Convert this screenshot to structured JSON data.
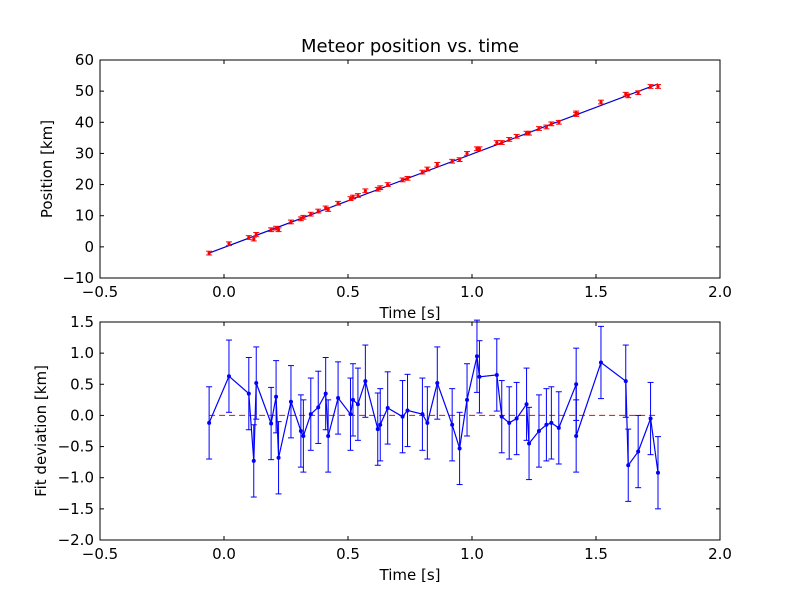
{
  "chart_data": [
    {
      "type": "scatter",
      "title": "Meteor position vs. time",
      "xlabel": "Time [s]",
      "ylabel": "Position [km]",
      "xlim": [
        -0.5,
        2.0
      ],
      "ylim": [
        -10,
        60
      ],
      "xticks": [
        "−0.5",
        "0.0",
        "0.5",
        "1.0",
        "1.5",
        "2.0"
      ],
      "yticks": [
        "−10",
        "0",
        "10",
        "20",
        "30",
        "40",
        "50",
        "60"
      ],
      "grid": false,
      "colors": {
        "points": "#ff0000",
        "fit": "#0000cc"
      },
      "series": [
        {
          "kind": "errorbar-points",
          "x": [
            -0.06,
            0.02,
            0.1,
            0.12,
            0.13,
            0.19,
            0.21,
            0.22,
            0.27,
            0.31,
            0.32,
            0.35,
            0.38,
            0.41,
            0.42,
            0.46,
            0.51,
            0.52,
            0.54,
            0.57,
            0.62,
            0.63,
            0.66,
            0.72,
            0.74,
            0.8,
            0.82,
            0.86,
            0.92,
            0.95,
            0.98,
            1.02,
            1.03,
            1.1,
            1.12,
            1.15,
            1.18,
            1.22,
            1.23,
            1.27,
            1.3,
            1.32,
            1.35,
            1.42,
            1.42,
            1.52,
            1.62,
            1.63,
            1.67,
            1.72,
            1.75
          ],
          "y": [
            -2.0,
            1.0,
            3.0,
            2.5,
            4.0,
            5.5,
            6.0,
            5.5,
            8.0,
            9.0,
            9.5,
            10.5,
            11.5,
            12.5,
            12.0,
            14.0,
            15.5,
            16.0,
            16.5,
            18.0,
            18.5,
            19.0,
            20.0,
            21.5,
            22.0,
            24.0,
            25.0,
            26.5,
            27.5,
            28.0,
            30.0,
            31.5,
            31.5,
            33.5,
            33.5,
            34.5,
            35.5,
            36.5,
            36.5,
            38.0,
            38.5,
            39.5,
            40.0,
            43.0,
            42.5,
            46.5,
            49.0,
            48.5,
            49.5,
            51.5,
            51.5
          ],
          "yerr": 0.6
        },
        {
          "kind": "fit-line",
          "x": [
            -0.06,
            1.75
          ],
          "y": [
            -2.0,
            52.3
          ]
        }
      ]
    },
    {
      "type": "line",
      "xlabel": "Time [s]",
      "ylabel": "Fit deviation [km]",
      "xlim": [
        -0.5,
        2.0
      ],
      "ylim": [
        -2.0,
        1.5
      ],
      "xticks": [
        "−0.5",
        "0.0",
        "0.5",
        "1.0",
        "1.5",
        "2.0"
      ],
      "yticks": [
        "−2.0",
        "−1.5",
        "−1.0",
        "−0.5",
        "0.0",
        "0.5",
        "1.0",
        "1.5"
      ],
      "grid": false,
      "colors": {
        "line": "#0000ff",
        "zero": "#ff0000"
      },
      "series": [
        {
          "kind": "errorbar-line",
          "x": [
            -0.06,
            0.02,
            0.1,
            0.12,
            0.13,
            0.19,
            0.21,
            0.22,
            0.27,
            0.31,
            0.32,
            0.35,
            0.38,
            0.41,
            0.42,
            0.46,
            0.51,
            0.52,
            0.54,
            0.57,
            0.62,
            0.63,
            0.66,
            0.72,
            0.74,
            0.8,
            0.82,
            0.86,
            0.92,
            0.95,
            0.98,
            1.02,
            1.03,
            1.1,
            1.12,
            1.15,
            1.18,
            1.22,
            1.23,
            1.27,
            1.3,
            1.32,
            1.35,
            1.42,
            1.42,
            1.52,
            1.62,
            1.63,
            1.67,
            1.72,
            1.75
          ],
          "y": [
            -0.12,
            0.63,
            0.35,
            -0.73,
            0.52,
            -0.13,
            0.3,
            -0.68,
            0.22,
            -0.25,
            -0.33,
            0.02,
            0.13,
            0.35,
            -0.33,
            0.28,
            0.02,
            0.25,
            0.18,
            0.55,
            -0.22,
            -0.15,
            0.12,
            -0.02,
            0.08,
            0.02,
            -0.12,
            0.52,
            -0.15,
            -0.53,
            0.25,
            0.95,
            0.62,
            0.65,
            -0.02,
            -0.12,
            -0.05,
            0.18,
            -0.45,
            -0.25,
            -0.15,
            -0.12,
            -0.2,
            0.5,
            -0.33,
            0.85,
            0.55,
            -0.8,
            -0.58,
            -0.05,
            -0.92
          ],
          "yerr": 0.58
        },
        {
          "kind": "zero-line",
          "x": [
            -0.06,
            1.75
          ],
          "y": [
            0,
            0
          ]
        }
      ]
    }
  ]
}
